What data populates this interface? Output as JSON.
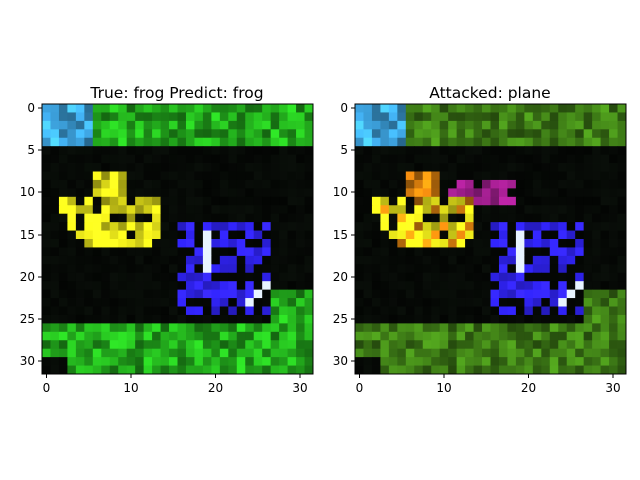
{
  "figure": {
    "panels": [
      {
        "title": "True: frog  Predict: frog",
        "x_ticks": [
          "0",
          "10",
          "20",
          "30"
        ],
        "y_ticks": [
          "0",
          "5",
          "10",
          "15",
          "20",
          "25",
          "30"
        ]
      },
      {
        "title": "Attacked: plane",
        "x_ticks": [
          "0",
          "10",
          "20",
          "30"
        ],
        "y_ticks": [
          "0",
          "5",
          "10",
          "15",
          "20",
          "25",
          "30"
        ]
      }
    ]
  },
  "colors": {
    "frog_green": "#22a81c",
    "sky_blue": "#3fa8e6",
    "frog_yellow": "#e6e31a",
    "dark_bg": "#050805",
    "blue_purple": "#2a1fd6",
    "white_highlight": "#e8f4ff",
    "attack_green": "#3d7a16",
    "attack_orange": "#e0820e",
    "attack_magenta": "#8a1a7a"
  }
}
